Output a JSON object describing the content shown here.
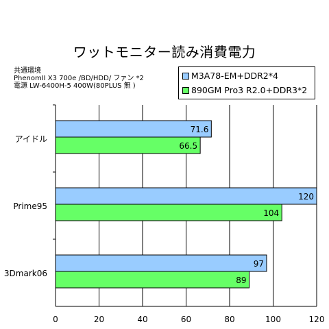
{
  "chart_data": {
    "type": "bar",
    "orientation": "horizontal",
    "title": "ワットモニター読み消費電力",
    "note_lines": [
      "共通環境",
      "PhenomII X3 700e /BD/HDD/ ファン *2",
      "電源 LW-6400H-5 400W(80PLUS 無 )"
    ],
    "categories": [
      "アイドル",
      "Prime95",
      "3Dmark06"
    ],
    "series": [
      {
        "name": "M3A78-EM+DDR2*4",
        "color": "#99ccff",
        "values": [
          71.6,
          120,
          97
        ]
      },
      {
        "name": "890GM Pro3 R2.0+DDR3*2",
        "color": "#66ff66",
        "values": [
          66.5,
          104,
          89
        ]
      }
    ],
    "xlim": [
      0,
      120
    ],
    "xticks": [
      0,
      20,
      40,
      60,
      80,
      100,
      120
    ],
    "grid": true,
    "legend_position": "top-right"
  }
}
